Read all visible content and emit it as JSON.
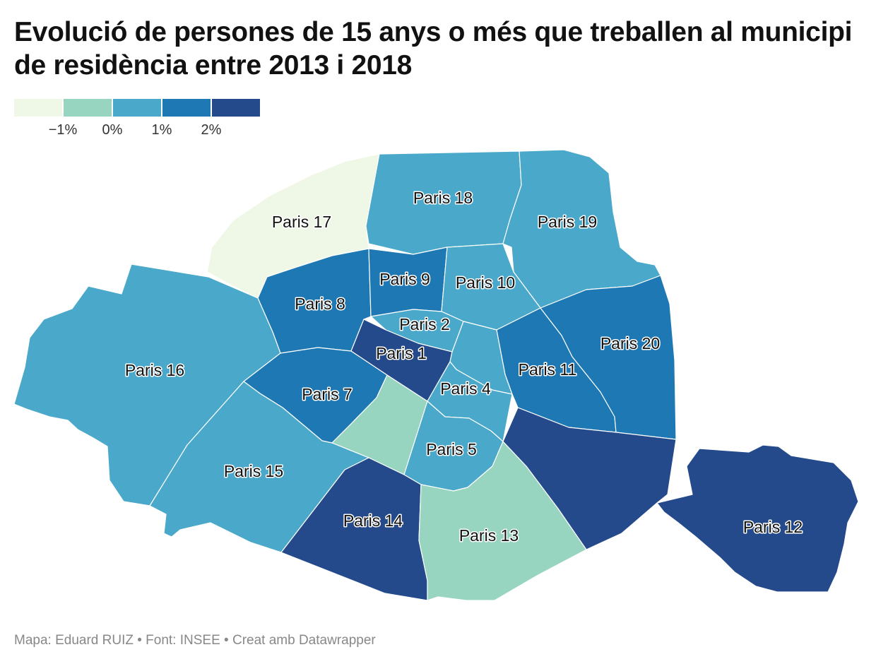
{
  "title": "Evolució de persones de 15 anys o més que treballen al municipi de residència entre 2013 i 2018",
  "legend": {
    "colors": [
      "#eff7e7",
      "#98d5c1",
      "#4aa8ca",
      "#1e78b4",
      "#244a8c"
    ],
    "ticks": [
      "−1%",
      "0%",
      "1%",
      "2%"
    ]
  },
  "arrondissements": [
    {
      "id": "17",
      "label": "Paris 17",
      "class": 0
    },
    {
      "id": "18",
      "label": "Paris 18",
      "class": 2
    },
    {
      "id": "19",
      "label": "Paris 19",
      "class": 2
    },
    {
      "id": "8",
      "label": "Paris 8",
      "class": 3
    },
    {
      "id": "9",
      "label": "Paris 9",
      "class": 3
    },
    {
      "id": "10",
      "label": "Paris 10",
      "class": 2
    },
    {
      "id": "2",
      "label": "Paris 2",
      "class": 2
    },
    {
      "id": "1",
      "label": "Paris 1",
      "class": 4
    },
    {
      "id": "16",
      "label": "Paris 16",
      "class": 2
    },
    {
      "id": "7",
      "label": "Paris 7",
      "class": 3
    },
    {
      "id": "4",
      "label": "Paris 4",
      "class": 2
    },
    {
      "id": "3",
      "label": "",
      "class": 2
    },
    {
      "id": "11",
      "label": "Paris 11",
      "class": 3
    },
    {
      "id": "20",
      "label": "Paris 20",
      "class": 3
    },
    {
      "id": "6",
      "label": "",
      "class": 1
    },
    {
      "id": "5",
      "label": "Paris 5",
      "class": 2
    },
    {
      "id": "15",
      "label": "Paris 15",
      "class": 2
    },
    {
      "id": "14",
      "label": "Paris 14",
      "class": 4
    },
    {
      "id": "13",
      "label": "Paris 13",
      "class": 1
    },
    {
      "id": "12",
      "label": "Paris 12",
      "class": 4
    }
  ],
  "footer": "Mapa: Eduard RUIZ • Font: INSEE • Creat amb Datawrapper"
}
